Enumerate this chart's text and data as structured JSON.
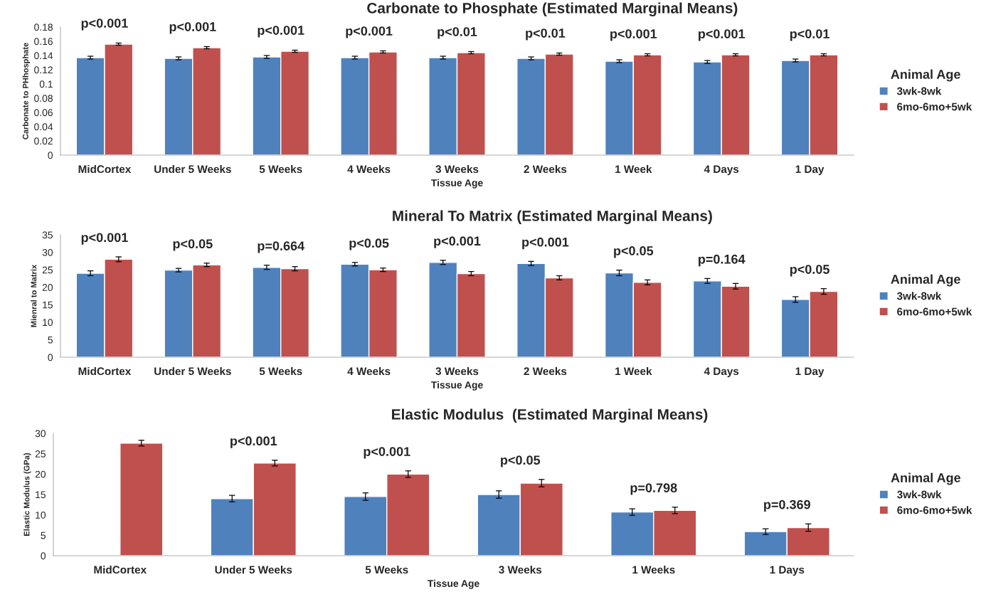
{
  "chart_data": [
    {
      "type": "bar",
      "title": "Carbonate to Phosphate (Estimated Marginal Means)",
      "xlabel": "Tissue Age",
      "ylabel": "Carbonate to PHhosphate",
      "legend_title": "Animal Age",
      "legend": "right",
      "categories": [
        "MidCortex",
        "Under 5 Weeks",
        "5 Weeks",
        "4 Weeks",
        "3 Weeks",
        "2 Weeks",
        "1 Week",
        "4 Days",
        "1 Day"
      ],
      "series": [
        {
          "name": "3wk-8wk",
          "color": "#4f81bd",
          "values": [
            0.137,
            0.136,
            0.138,
            0.137,
            0.137,
            0.136,
            0.132,
            0.131,
            0.133
          ],
          "errors": [
            0.002,
            0.002,
            0.002,
            0.002,
            0.002,
            0.002,
            0.002,
            0.002,
            0.002
          ]
        },
        {
          "name": "6mo-6mo+5wk",
          "color": "#c0504d",
          "values": [
            0.156,
            0.151,
            0.146,
            0.145,
            0.144,
            0.142,
            0.141,
            0.141,
            0.141
          ],
          "errors": [
            0.0015,
            0.0015,
            0.0015,
            0.0015,
            0.0015,
            0.0015,
            0.0015,
            0.0015,
            0.0015
          ]
        }
      ],
      "ylim": [
        0,
        0.18
      ],
      "yticks": [
        0,
        0.02,
        0.04,
        0.06,
        0.08,
        0.1,
        0.12,
        0.14,
        0.16,
        0.18
      ],
      "annotations": [
        "p<0.001",
        "p<0.001",
        "p<0.001",
        "p<0.001",
        "p<0.01",
        "p<0.01",
        "p<0.001",
        "p<0.001",
        "p<0.01"
      ]
    },
    {
      "type": "bar",
      "title": "Mineral To Matrix (Estimated Marginal Means)",
      "xlabel": "Tissue Age",
      "ylabel": "Mienral to Matrix",
      "legend_title": "Animal Age",
      "legend": "right",
      "categories": [
        "MidCortex",
        "Under 5 Weeks",
        "5 Weeks",
        "4 Weeks",
        "3 Weeks",
        "2 Weeks",
        "1 Week",
        "4 Days",
        "1 Day"
      ],
      "series": [
        {
          "name": "3wk-8wk",
          "color": "#4f81bd",
          "values": [
            24,
            24.9,
            25.7,
            26.6,
            27.1,
            26.8,
            24.1,
            21.8,
            16.5
          ],
          "errors": [
            0.7,
            0.5,
            0.6,
            0.5,
            0.6,
            0.6,
            0.8,
            0.7,
            0.8
          ]
        },
        {
          "name": "6mo-6mo+5wk",
          "color": "#c0504d",
          "values": [
            28,
            26.4,
            25.3,
            25,
            23.9,
            22.7,
            21.4,
            20.3,
            18.8
          ],
          "errors": [
            0.7,
            0.5,
            0.6,
            0.5,
            0.6,
            0.6,
            0.7,
            0.8,
            0.8
          ]
        }
      ],
      "ylim": [
        0,
        35
      ],
      "yticks": [
        0,
        5,
        10,
        15,
        20,
        25,
        30,
        35
      ],
      "annotations": [
        "p<0.001",
        "p<0.05",
        "p=0.664",
        "p<0.05",
        "p<0.001",
        "p<0.001",
        "p<0.05",
        "p=0.164",
        "p<0.05"
      ]
    },
    {
      "type": "bar",
      "title": "Elastic Modulus  (Estimated Marginal Means)",
      "xlabel": "Tissue Age",
      "ylabel": "Elastic Modulus (GPa)",
      "legend_title": "Animal Age",
      "legend": "right",
      "categories": [
        "MidCortex",
        "Under 5 Weeks",
        "5 Weeks",
        "3 Weeks",
        "1 Weeks",
        "1 Days"
      ],
      "series": [
        {
          "name": "3wk-8wk",
          "color": "#4f81bd",
          "values": [
            null,
            14,
            14.5,
            15,
            10.7,
            5.9
          ],
          "errors": [
            null,
            0.8,
            0.9,
            0.9,
            0.8,
            0.7
          ]
        },
        {
          "name": "6mo-6mo+5wk",
          "color": "#c0504d",
          "values": [
            27.6,
            22.7,
            20,
            17.8,
            11.1,
            6.9
          ],
          "errors": [
            0.7,
            0.7,
            0.8,
            0.9,
            0.8,
            0.9
          ]
        }
      ],
      "ylim": [
        0,
        30
      ],
      "yticks": [
        0,
        5,
        10,
        15,
        20,
        25,
        30
      ],
      "annotations": [
        "p<0.001",
        "p<0.001",
        "p<0.05",
        "p=0.798",
        "p=0.369"
      ]
    }
  ]
}
